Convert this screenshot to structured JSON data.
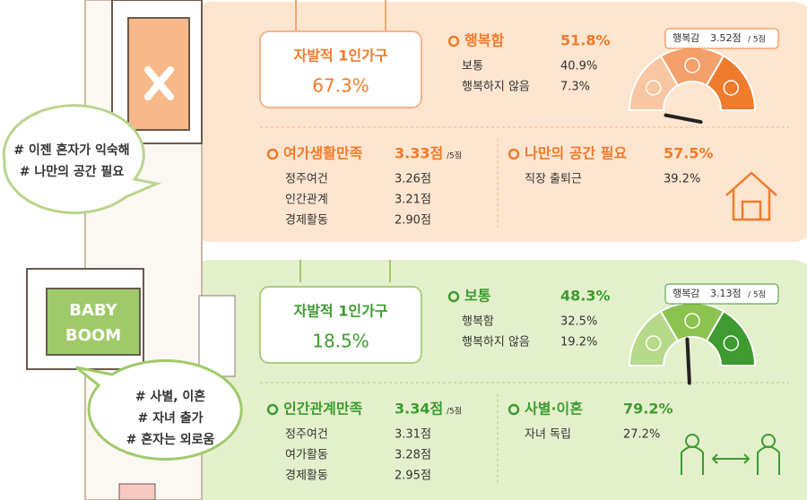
{
  "sections": [
    {
      "title": "자발적 1인가구",
      "share": "67.3%",
      "happiness": {
        "label": "행복함",
        "value": "51.8%",
        "rows": [
          {
            "label": "보통",
            "value": "40.9%"
          },
          {
            "label": "행복하지 않음",
            "value": "7.3%"
          }
        ]
      },
      "gauge": {
        "label": "행복감",
        "score": "3.52점",
        "max": "/ 5점"
      },
      "satisfaction": {
        "label": "여가생활만족",
        "score": "3.33점",
        "max": "/5점",
        "rows": [
          {
            "label": "정주여건",
            "value": "3.26점"
          },
          {
            "label": "인간관계",
            "value": "3.21점"
          },
          {
            "label": "경제활동",
            "value": "2.90점"
          }
        ]
      },
      "reason": {
        "label": "나만의 공간 필요",
        "value": "57.5%",
        "rows": [
          {
            "label": "직장 출퇴근",
            "value": "39.2%"
          }
        ]
      },
      "tags": [
        "# 이젠 혼자가 익숙해",
        "# 나만의 공간 필요"
      ]
    },
    {
      "title": "자발적 1인가구",
      "share": "18.5%",
      "happiness": {
        "label": "보통",
        "value": "48.3%",
        "rows": [
          {
            "label": "행복함",
            "value": "32.5%"
          },
          {
            "label": "행복하지 않음",
            "value": "19.2%"
          }
        ]
      },
      "gauge": {
        "label": "행복감",
        "score": "3.13점",
        "max": "/ 5점"
      },
      "satisfaction": {
        "label": "인간관계만족",
        "score": "3.34점",
        "max": "/5점",
        "rows": [
          {
            "label": "정주여건",
            "value": "3.31점"
          },
          {
            "label": "여가활동",
            "value": "3.28점"
          },
          {
            "label": "경제활동",
            "value": "2.95점"
          }
        ]
      },
      "reason": {
        "label": "사별·이혼",
        "value": "79.2%",
        "rows": [
          {
            "label": "자녀 독립",
            "value": "27.2%"
          }
        ]
      },
      "tags": [
        "# 사별, 이혼",
        "# 자녀 출가",
        "# 혼자는 외로움"
      ]
    }
  ],
  "sign": [
    "BABY",
    "BOOM"
  ]
}
